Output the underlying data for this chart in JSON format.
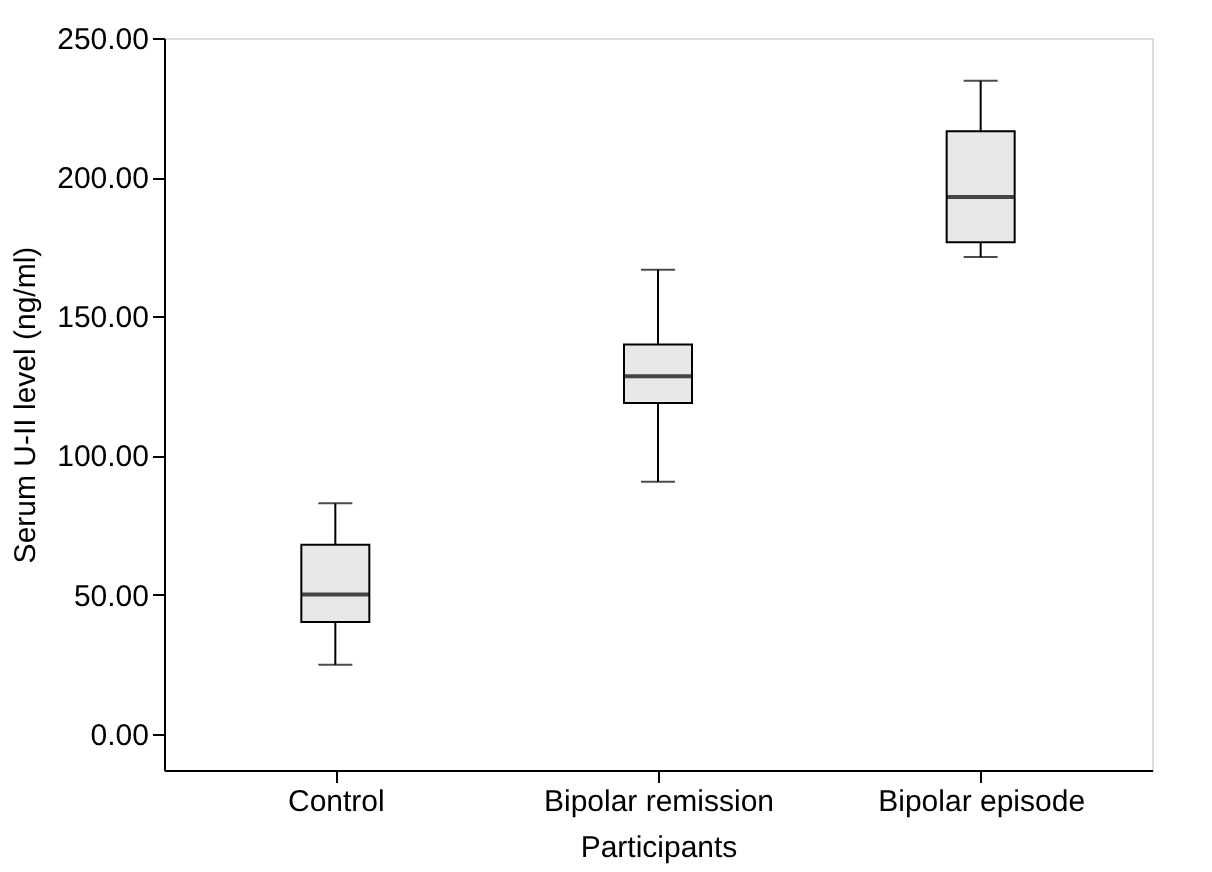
{
  "chart_data": {
    "type": "box",
    "xlabel": "Participants",
    "ylabel": "Serum U-II level (ng/ml)",
    "categories": [
      "Control",
      "Bipolar remission",
      "Bipolar episode"
    ],
    "boxes": [
      {
        "low": 24.8,
        "q1": 40.2,
        "median": 50.1,
        "q3": 67.9,
        "high": 82.8
      },
      {
        "low": 90.6,
        "q1": 118.9,
        "median": 128.5,
        "q3": 139.9,
        "high": 166.7
      },
      {
        "low": 171.3,
        "q1": 176.6,
        "median": 192.9,
        "q3": 216.5,
        "high": 234.6
      }
    ],
    "color": "#e8e8e8",
    "ylim": [
      -13,
      250
    ],
    "yticks": [
      {
        "value": 0,
        "label": "0.00"
      },
      {
        "value": 50,
        "label": "50.00"
      },
      {
        "value": 100,
        "label": "100.00"
      },
      {
        "value": 150,
        "label": "150.00"
      },
      {
        "value": 200,
        "label": "200.00"
      },
      {
        "value": 250,
        "label": "250.00"
      }
    ],
    "grid": false
  }
}
